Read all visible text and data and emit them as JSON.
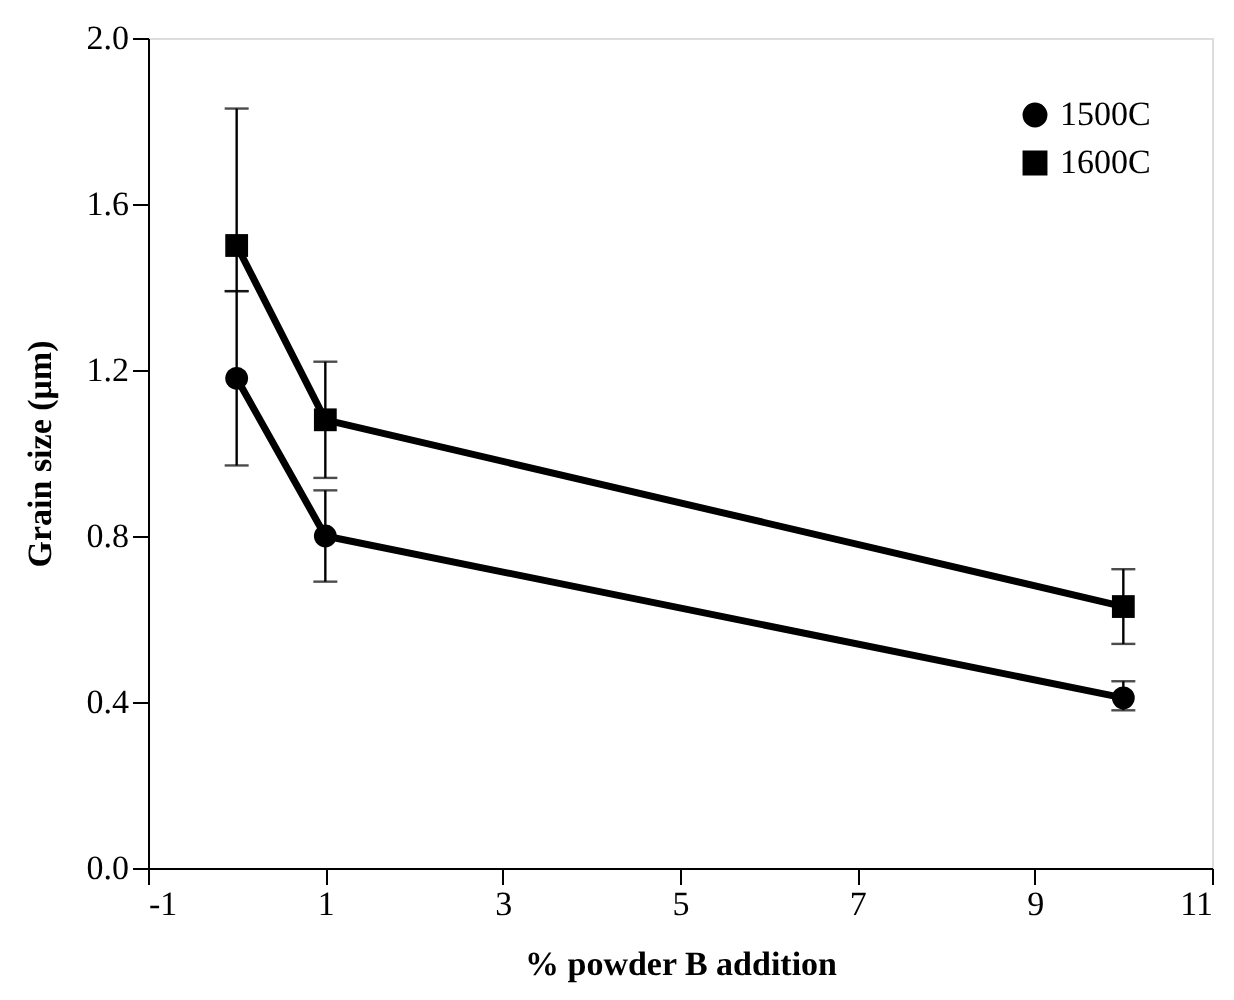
{
  "chart_data": {
    "type": "line",
    "xlabel": "% powder B addition",
    "ylabel": "Grain size (μm)",
    "x": [
      0,
      1,
      10
    ],
    "series": [
      {
        "name": "1500C",
        "color": "#000000",
        "marker": "circle",
        "values": [
          1.18,
          0.8,
          0.41
        ],
        "errors": [
          [
            0.97,
            1.39
          ],
          [
            0.69,
            0.91
          ],
          [
            0.38,
            0.45
          ]
        ]
      },
      {
        "name": "1600C",
        "color": "#000000",
        "marker": "square",
        "values": [
          1.5,
          1.08,
          0.63
        ],
        "errors": [
          [
            1.39,
            1.83
          ],
          [
            0.94,
            1.22
          ],
          [
            0.54,
            0.72
          ]
        ]
      }
    ],
    "xlim": [
      -1,
      11
    ],
    "xticks": [
      -1,
      1,
      3,
      5,
      7,
      9,
      11
    ],
    "ylim": [
      0,
      2
    ],
    "yticks": [
      {
        "value": 0,
        "label": "0.0"
      },
      0.4,
      0.8,
      1.2,
      1.6,
      {
        "value": 2,
        "label": "2.0"
      }
    ],
    "grid": false,
    "legend": "top right",
    "line_style": "solid"
  }
}
